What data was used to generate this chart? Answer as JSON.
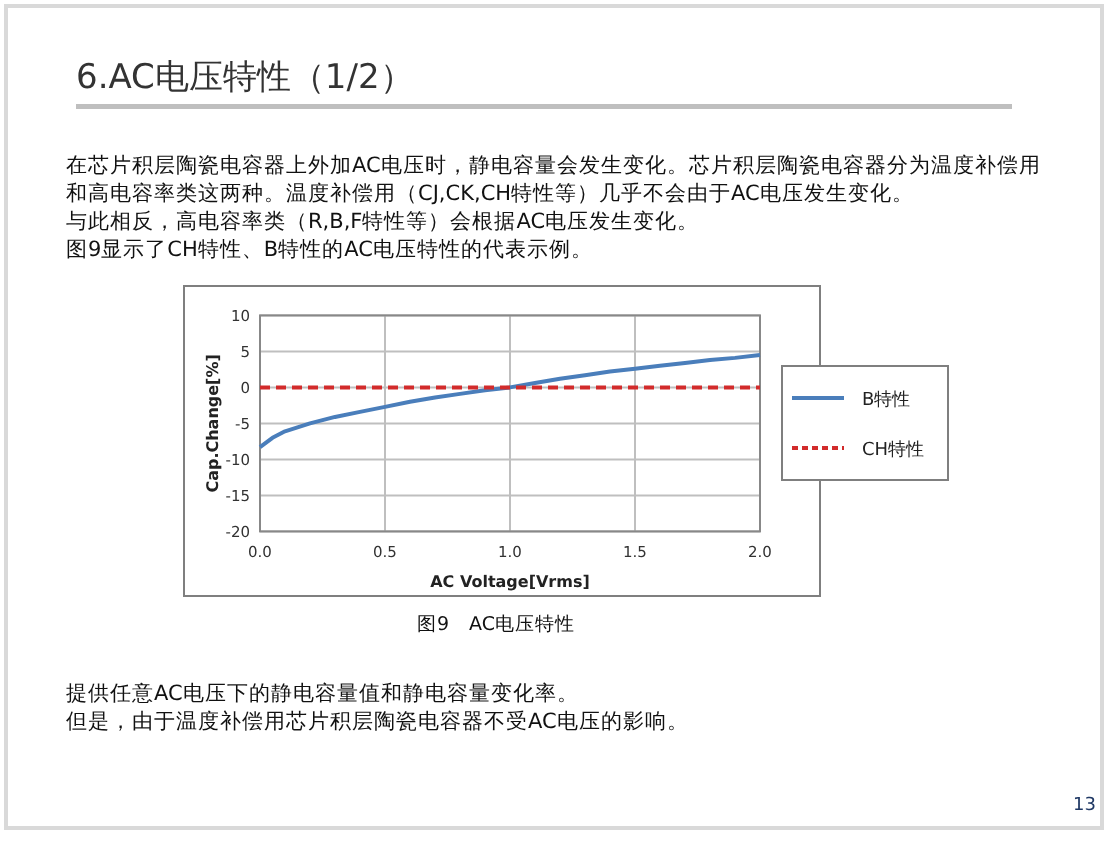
{
  "chart_data": {
    "type": "line",
    "title": "6.AC电压特性（1/2）",
    "annotations": [
      "在芯片积层陶瓷电容器上外加AC电压时，静电容量会发生变化。芯片积层陶瓷电容器分为温度补偿用",
      "和高电容率类这两种。温度补偿用（CJ,CK,CH特性等）几乎不会由于AC电压发生变化。",
      "与此相反，高电容率类（R,B,F特性等）会根据AC电压发生变化。",
      "图9显示了CH特性、B特性的AC电压特性的代表示例。",
      "图9　AC电压特性",
      "提供任意AC电压下的静电容量值和静电容量变化率。",
      "但是，由于温度补偿用芯片积层陶瓷电容器不受AC电压的影响。",
      "13"
    ],
    "xlabel": "AC  Voltage[Vrms]",
    "ylabel": "Cap.Change[%]",
    "series": [
      {
        "name": "B特性",
        "color": "#4a7ebb",
        "line_style": "solid",
        "x": [
          0,
          0.05,
          0.1,
          0.2,
          0.3,
          0.4,
          0.5,
          0.6,
          0.7,
          0.8,
          0.9,
          1.0,
          1.1,
          1.2,
          1.3,
          1.4,
          1.5,
          1.6,
          1.7,
          1.8,
          1.9,
          2.0
        ],
        "values": [
          -8.3,
          -7.0,
          -6.1,
          -5.0,
          -4.1,
          -3.4,
          -2.7,
          -2.0,
          -1.4,
          -0.9,
          -0.4,
          0,
          0.6,
          1.2,
          1.7,
          2.2,
          2.6,
          3.0,
          3.4,
          3.8,
          4.1,
          4.5
        ]
      },
      {
        "name": "CH特性",
        "color": "#d22b2b",
        "line_style": "dashed",
        "x": [
          0,
          2.0
        ],
        "values": [
          0,
          0
        ]
      }
    ],
    "xlim": [
      0,
      2.0
    ],
    "ylim": [
      -20,
      10
    ],
    "xticks": [
      {
        "value": 0,
        "label": "0.0"
      },
      {
        "value": 0.5,
        "label": "0.5"
      },
      {
        "value": 1.0,
        "label": "1.0"
      },
      {
        "value": 1.5,
        "label": "1.5"
      },
      {
        "value": 2.0,
        "label": "2.0"
      }
    ],
    "yticks": [
      -20,
      -15,
      -10,
      -5,
      0,
      5,
      10
    ],
    "grid": true,
    "legend": "right",
    "marker": "none"
  }
}
